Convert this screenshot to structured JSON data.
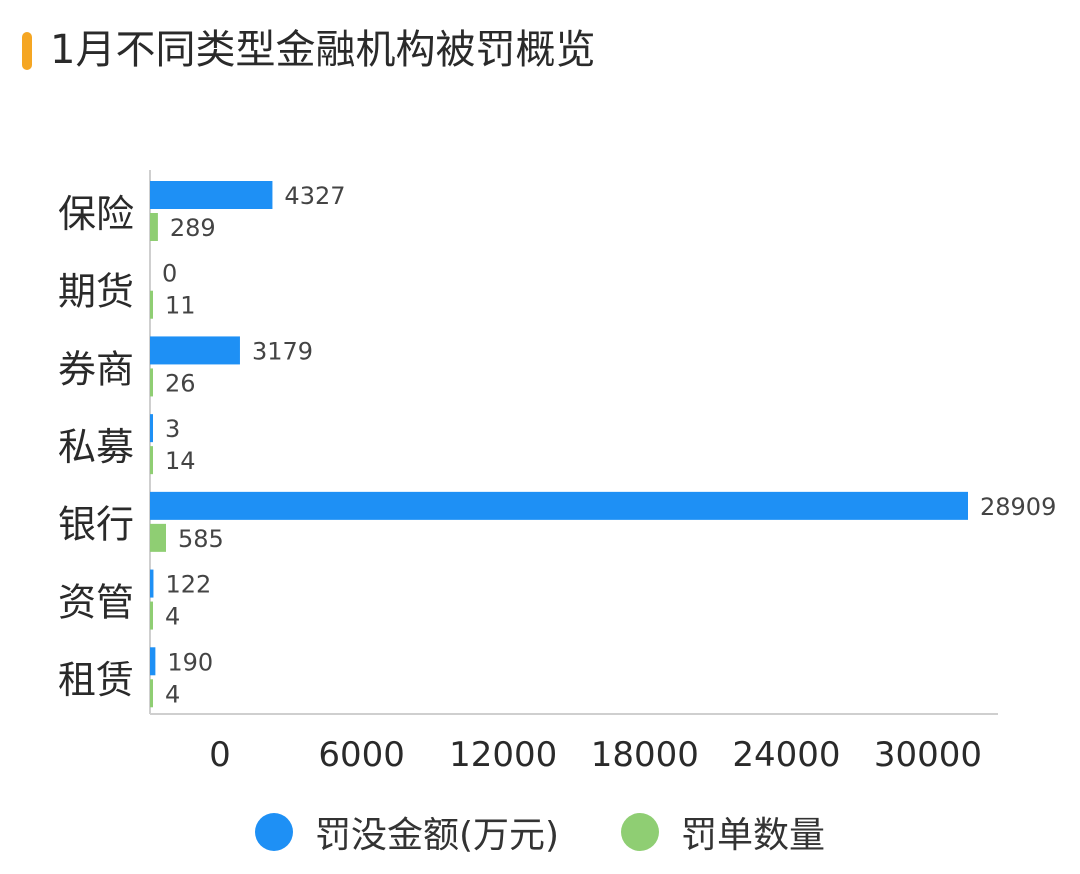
{
  "title": "1月不同类型金融机构被罚概览",
  "colors": {
    "accent_bar": "#f5a623",
    "series_amount": "#1e90f5",
    "series_count": "#8fce73",
    "axis": "#cfcfcf",
    "text": "#333333"
  },
  "legend": {
    "amount_label": "罚没金额(万元)",
    "count_label": "罚单数量"
  },
  "chart_data": {
    "type": "bar",
    "orientation": "horizontal",
    "categories": [
      "保险",
      "期货",
      "券商",
      "私募",
      "银行",
      "资管",
      "租赁"
    ],
    "series": [
      {
        "name": "罚没金额(万元)",
        "values": [
          4327,
          0,
          3179,
          3,
          28909,
          122,
          190
        ]
      },
      {
        "name": "罚单数量",
        "values": [
          289,
          11,
          26,
          14,
          585,
          4,
          4
        ]
      }
    ],
    "x_ticks": [
      "0",
      "6000",
      "12000",
      "18000",
      "24000",
      "30000"
    ],
    "xlim": [
      0,
      30000
    ],
    "xlabel": "",
    "ylabel": "",
    "grid": false,
    "legend_position": "bottom"
  }
}
